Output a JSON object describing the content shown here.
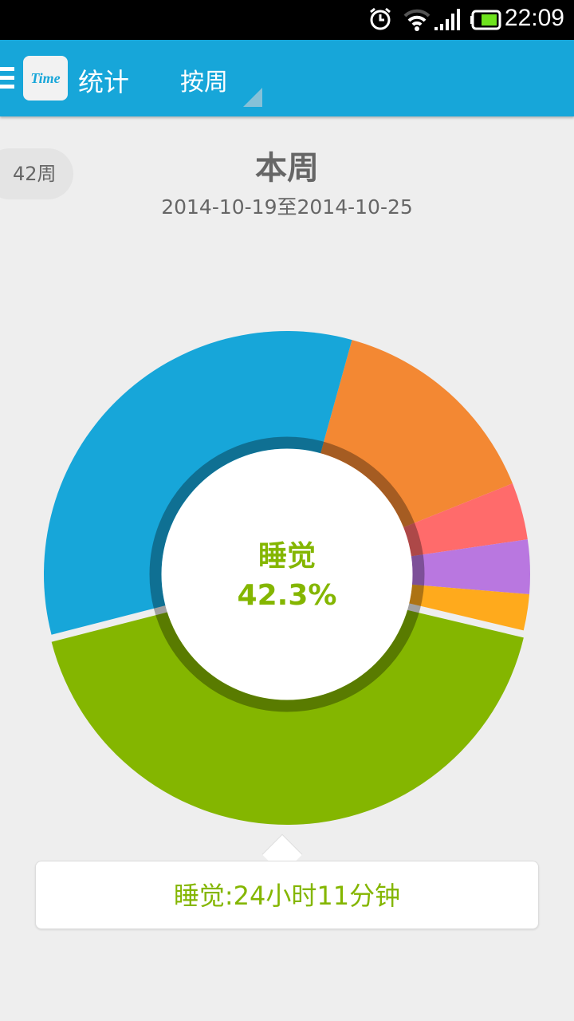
{
  "status_bar": {
    "time": "22:09",
    "icons": [
      "alarm-icon",
      "wifi-icon",
      "signal-icon",
      "battery-icon"
    ]
  },
  "app_bar": {
    "logo_text": "Time",
    "title": "统计",
    "period_selector": "按周",
    "color": "#17a6d9"
  },
  "week_badge": "42周",
  "header": {
    "title": "本周",
    "date_range": "2014-10-19至2014-10-25"
  },
  "chart_data": {
    "type": "pie",
    "style": "donut",
    "selected": "睡觉",
    "center_label": "睡觉",
    "center_value": "42.3%",
    "slices": [
      {
        "value": 14.6,
        "color": "#f38833"
      },
      {
        "value": 3.8,
        "color": "#ff6b6b"
      },
      {
        "value": 3.6,
        "color": "#b977e0"
      },
      {
        "value": 2.4,
        "color": "#ffaa1c"
      },
      {
        "label": "睡觉",
        "value": 42.3,
        "color": "#84b600"
      },
      {
        "value": 33.3,
        "color": "#17a6d9"
      }
    ],
    "start_angle_deg": 15.5
  },
  "tooltip": "睡觉:24小时11分钟"
}
